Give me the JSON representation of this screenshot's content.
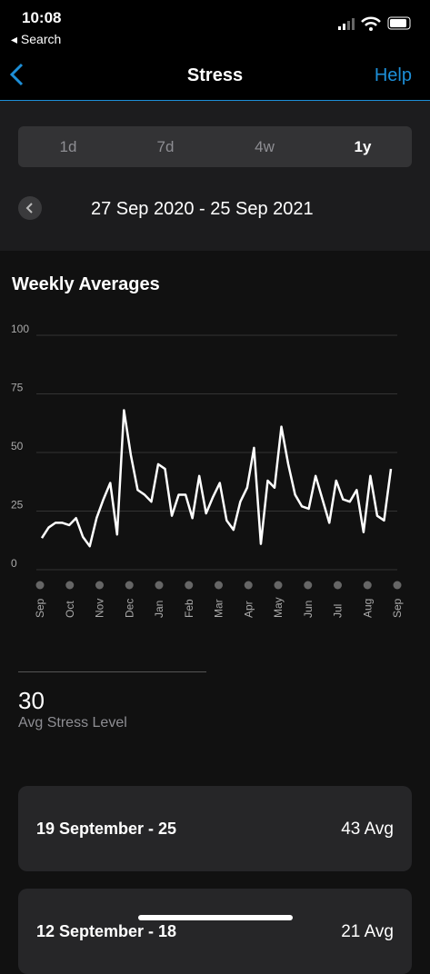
{
  "status_bar": {
    "time": "10:08",
    "back_app": "Search"
  },
  "nav": {
    "title": "Stress",
    "action": "Help"
  },
  "tabs": [
    "1d",
    "7d",
    "4w",
    "1y"
  ],
  "date_range": "27 Sep 2020 - 25 Sep 2021",
  "chart_data": {
    "type": "line",
    "title": "Weekly Averages",
    "color": "#ffffff",
    "values": [
      13.5,
      18,
      20,
      20,
      19,
      22,
      14,
      10,
      22,
      30,
      37,
      15,
      68,
      49,
      34,
      32,
      29,
      45,
      43,
      23,
      32,
      32,
      22,
      40,
      24,
      31,
      37,
      21,
      17,
      29,
      35,
      52,
      11,
      38,
      35,
      61,
      45,
      32,
      27,
      26,
      40,
      30,
      20,
      38,
      30,
      29,
      34,
      16,
      40,
      23,
      21,
      43
    ],
    "x_labels": [
      "Sep",
      "Oct",
      "Nov",
      "Dec",
      "Jan",
      "Feb",
      "Mar",
      "Apr",
      "May",
      "Jun",
      "Jul",
      "Aug",
      "Sep"
    ],
    "ylim": [
      0,
      100
    ],
    "yticks": [
      0,
      25,
      50,
      75,
      100
    ],
    "grid": true
  },
  "summary": {
    "value": "30",
    "label": "Avg Stress Level"
  },
  "list": [
    {
      "range": "19 September - 25",
      "avg": "43 Avg"
    },
    {
      "range": "12 September - 18",
      "avg": "21 Avg"
    }
  ]
}
